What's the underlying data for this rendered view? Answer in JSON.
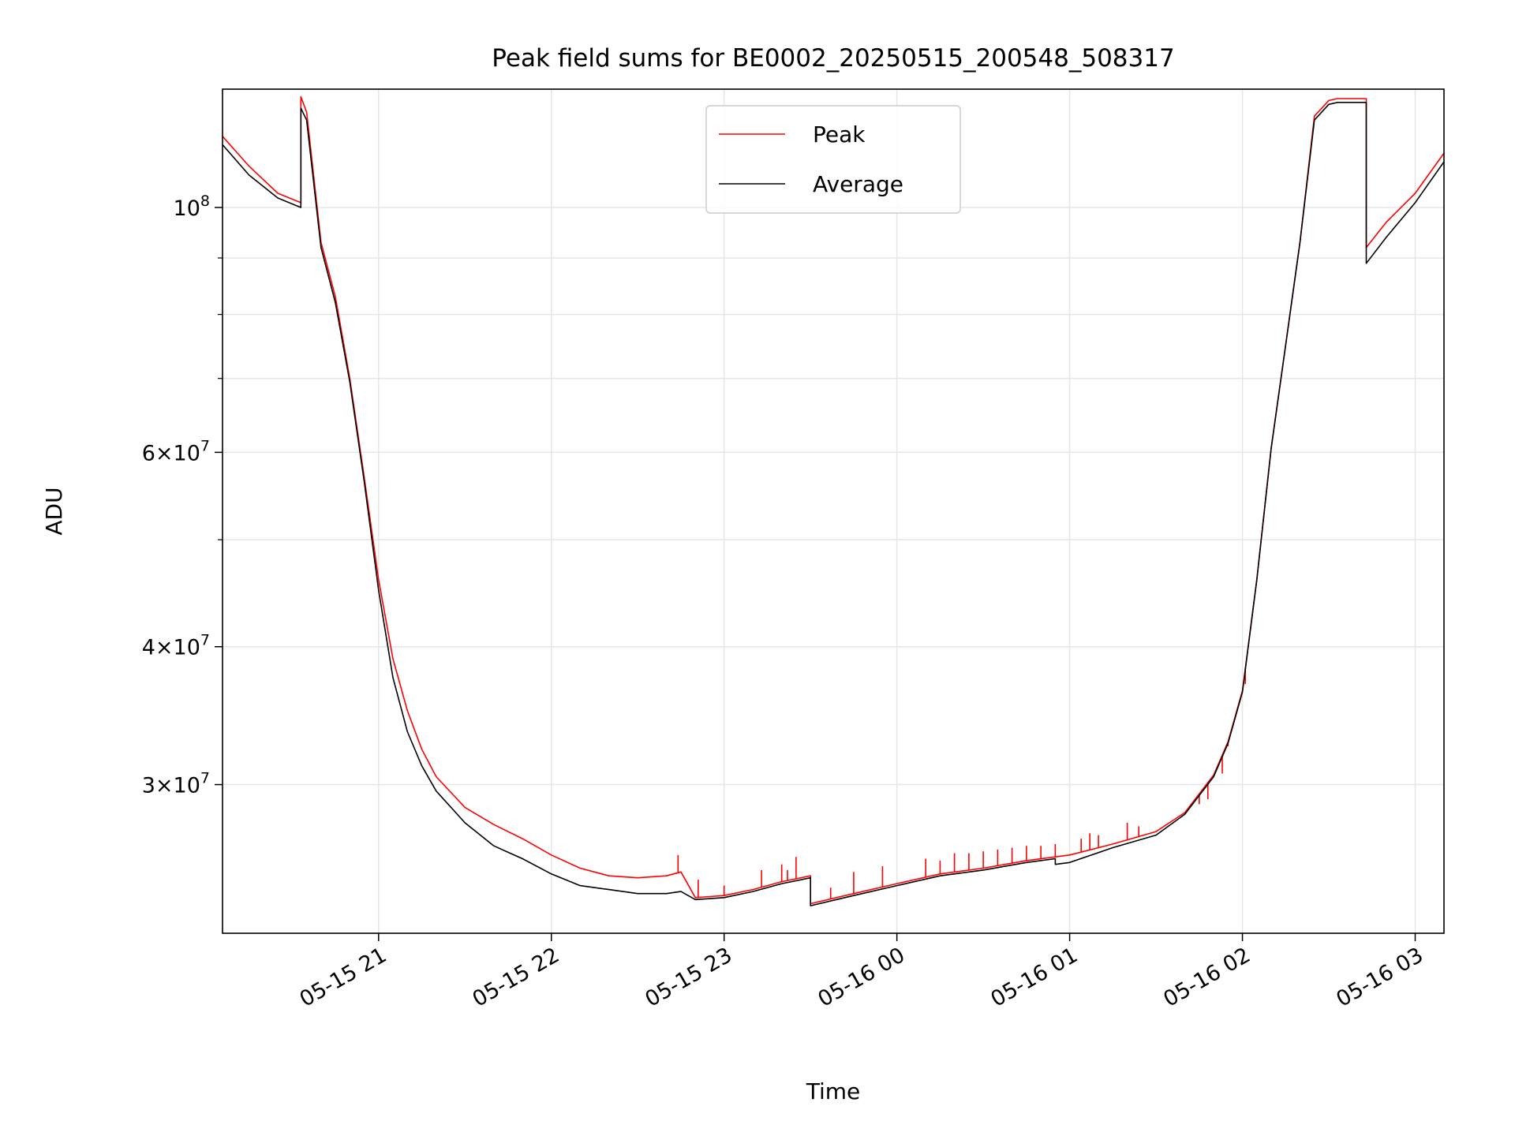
{
  "chart_data": {
    "type": "line",
    "title": "Peak field sums for BE0002_20250515_200548_508317",
    "xlabel": "Time",
    "ylabel": "ADU",
    "y_scale": "log",
    "ylim": [
      22000000,
      128000000
    ],
    "xlim": [
      "2025-05-15 20:05:48",
      "2025-05-16 03:10:00"
    ],
    "grid": true,
    "legend_position": "upper center",
    "x_ticks": [
      {
        "t": "2025-05-15 21:00",
        "label": "05-15 21"
      },
      {
        "t": "2025-05-15 22:00",
        "label": "05-15 22"
      },
      {
        "t": "2025-05-15 23:00",
        "label": "05-15 23"
      },
      {
        "t": "2025-05-16 00:00",
        "label": "05-16 00"
      },
      {
        "t": "2025-05-16 01:00",
        "label": "05-16 01"
      },
      {
        "t": "2025-05-16 02:00",
        "label": "05-16 02"
      },
      {
        "t": "2025-05-16 03:00",
        "label": "05-16 03"
      }
    ],
    "y_ticks": [
      {
        "v": 30000000,
        "base": "3",
        "exp": "7"
      },
      {
        "v": 40000000,
        "base": "4",
        "exp": "7"
      },
      {
        "v": 60000000,
        "base": "6",
        "exp": "7"
      },
      {
        "v": 100000000,
        "base": "10",
        "exp": "8",
        "pow_only": true
      }
    ],
    "y_minor_ticks": [
      50000000,
      70000000,
      80000000,
      90000000
    ],
    "series": [
      {
        "name": "Peak",
        "color": "#ff0000",
        "x": [
          "2025-05-15 20:05:48",
          "2025-05-15 20:15",
          "2025-05-15 20:25",
          "2025-05-15 20:33",
          "2025-05-15 20:33",
          "2025-05-15 20:35",
          "2025-05-15 20:40",
          "2025-05-15 20:45",
          "2025-05-15 20:50",
          "2025-05-15 20:55",
          "2025-05-15 21:00",
          "2025-05-15 21:05",
          "2025-05-15 21:10",
          "2025-05-15 21:15",
          "2025-05-15 21:20",
          "2025-05-15 21:30",
          "2025-05-15 21:40",
          "2025-05-15 21:50",
          "2025-05-15 22:00",
          "2025-05-15 22:10",
          "2025-05-15 22:20",
          "2025-05-15 22:30",
          "2025-05-15 22:40",
          "2025-05-15 22:45",
          "2025-05-15 22:50",
          "2025-05-15 23:00",
          "2025-05-15 23:10",
          "2025-05-15 23:20",
          "2025-05-15 23:30",
          "2025-05-15 23:30",
          "2025-05-15 23:45",
          "2025-05-16 00:00",
          "2025-05-16 00:15",
          "2025-05-16 00:30",
          "2025-05-16 00:45",
          "2025-05-16 00:55",
          "2025-05-16 01:00",
          "2025-05-16 01:15",
          "2025-05-16 01:30",
          "2025-05-16 01:40",
          "2025-05-16 01:50",
          "2025-05-16 01:55",
          "2025-05-16 02:00",
          "2025-05-16 02:05",
          "2025-05-16 02:10",
          "2025-05-16 02:15",
          "2025-05-16 02:20",
          "2025-05-16 02:25",
          "2025-05-16 02:30",
          "2025-05-16 02:33",
          "2025-05-16 02:40",
          "2025-05-16 02:43",
          "2025-05-16 02:43",
          "2025-05-16 02:50",
          "2025-05-16 03:00",
          "2025-05-16 03:10"
        ],
        "y": [
          116000000,
          109000000,
          103000000,
          101000000,
          126000000,
          122000000,
          93000000,
          83000000,
          70000000,
          57000000,
          46000000,
          39000000,
          35000000,
          32300000,
          30500000,
          28600000,
          27600000,
          26800000,
          25900000,
          25200000,
          24800000,
          24700000,
          24800000,
          25000000,
          23700000,
          23800000,
          24100000,
          24500000,
          24800000,
          23400000,
          23900000,
          24400000,
          24900000,
          25200000,
          25600000,
          25800000,
          25900000,
          26500000,
          27200000,
          28300000,
          30600000,
          32800000,
          36500000,
          46000000,
          60500000,
          75000000,
          93000000,
          121000000,
          125000000,
          125500000,
          125500000,
          125500000,
          92000000,
          97000000,
          103000000,
          112000000
        ],
        "spikes": [
          [
            "2025-05-15 22:44",
            25900000
          ],
          [
            "2025-05-15 22:51",
            24600000
          ],
          [
            "2025-05-15 23:00",
            24300000
          ],
          [
            "2025-05-15 23:13",
            25100000
          ],
          [
            "2025-05-15 23:20",
            25400000
          ],
          [
            "2025-05-15 23:22",
            25100000
          ],
          [
            "2025-05-15 23:25",
            25800000
          ],
          [
            "2025-05-15 23:37",
            24200000
          ],
          [
            "2025-05-15 23:45",
            25000000
          ],
          [
            "2025-05-15 23:55",
            25300000
          ],
          [
            "2025-05-16 00:10",
            25700000
          ],
          [
            "2025-05-16 00:15",
            25600000
          ],
          [
            "2025-05-16 00:20",
            26000000
          ],
          [
            "2025-05-16 00:25",
            26000000
          ],
          [
            "2025-05-16 00:30",
            26100000
          ],
          [
            "2025-05-16 00:35",
            26200000
          ],
          [
            "2025-05-16 00:40",
            26300000
          ],
          [
            "2025-05-16 00:45",
            26400000
          ],
          [
            "2025-05-16 00:50",
            26400000
          ],
          [
            "2025-05-16 00:55",
            26500000
          ],
          [
            "2025-05-16 01:04",
            26800000
          ],
          [
            "2025-05-16 01:07",
            27100000
          ],
          [
            "2025-05-16 01:10",
            27000000
          ],
          [
            "2025-05-16 01:20",
            27700000
          ],
          [
            "2025-05-16 01:24",
            27500000
          ],
          [
            "2025-05-16 01:45",
            28800000
          ],
          [
            "2025-05-16 01:48",
            29100000
          ],
          [
            "2025-05-16 01:53",
            30700000
          ],
          [
            "2025-05-16 01:55",
            32500000
          ],
          [
            "2025-05-16 02:01",
            37000000
          ]
        ]
      },
      {
        "name": "Average",
        "color": "#000000",
        "x": [
          "2025-05-15 20:05:48",
          "2025-05-15 20:15",
          "2025-05-15 20:25",
          "2025-05-15 20:33",
          "2025-05-15 20:33",
          "2025-05-15 20:35",
          "2025-05-15 20:40",
          "2025-05-15 20:45",
          "2025-05-15 20:50",
          "2025-05-15 20:55",
          "2025-05-15 21:00",
          "2025-05-15 21:05",
          "2025-05-15 21:10",
          "2025-05-15 21:15",
          "2025-05-15 21:20",
          "2025-05-15 21:30",
          "2025-05-15 21:40",
          "2025-05-15 21:50",
          "2025-05-15 22:00",
          "2025-05-15 22:10",
          "2025-05-15 22:20",
          "2025-05-15 22:30",
          "2025-05-15 22:40",
          "2025-05-15 22:45",
          "2025-05-15 22:50",
          "2025-05-15 23:00",
          "2025-05-15 23:10",
          "2025-05-15 23:20",
          "2025-05-15 23:30",
          "2025-05-15 23:30",
          "2025-05-15 23:45",
          "2025-05-16 00:00",
          "2025-05-16 00:15",
          "2025-05-16 00:30",
          "2025-05-16 00:45",
          "2025-05-16 00:55",
          "2025-05-16 00:55",
          "2025-05-16 01:00",
          "2025-05-16 01:15",
          "2025-05-16 01:30",
          "2025-05-16 01:40",
          "2025-05-16 01:50",
          "2025-05-16 01:55",
          "2025-05-16 02:00",
          "2025-05-16 02:05",
          "2025-05-16 02:10",
          "2025-05-16 02:15",
          "2025-05-16 02:20",
          "2025-05-16 02:25",
          "2025-05-16 02:30",
          "2025-05-16 02:33",
          "2025-05-16 02:40",
          "2025-05-16 02:43",
          "2025-05-16 02:43",
          "2025-05-16 02:50",
          "2025-05-16 03:00",
          "2025-05-16 03:10"
        ],
        "y": [
          114000000,
          107000000,
          102000000,
          100000000,
          123000000,
          120000000,
          92000000,
          82000000,
          69500000,
          56500000,
          45000000,
          37500000,
          33500000,
          31200000,
          29600000,
          27700000,
          26400000,
          25700000,
          24900000,
          24300000,
          24100000,
          23900000,
          23900000,
          24000000,
          23600000,
          23700000,
          24000000,
          24400000,
          24700000,
          23300000,
          23800000,
          24300000,
          24800000,
          25100000,
          25500000,
          25700000,
          25400000,
          25500000,
          26300000,
          27000000,
          28200000,
          30500000,
          32700000,
          36400000,
          46000000,
          60500000,
          75000000,
          93000000,
          120000000,
          124000000,
          124500000,
          124500000,
          124500000,
          89000000,
          94000000,
          101000000,
          110000000
        ]
      }
    ]
  }
}
